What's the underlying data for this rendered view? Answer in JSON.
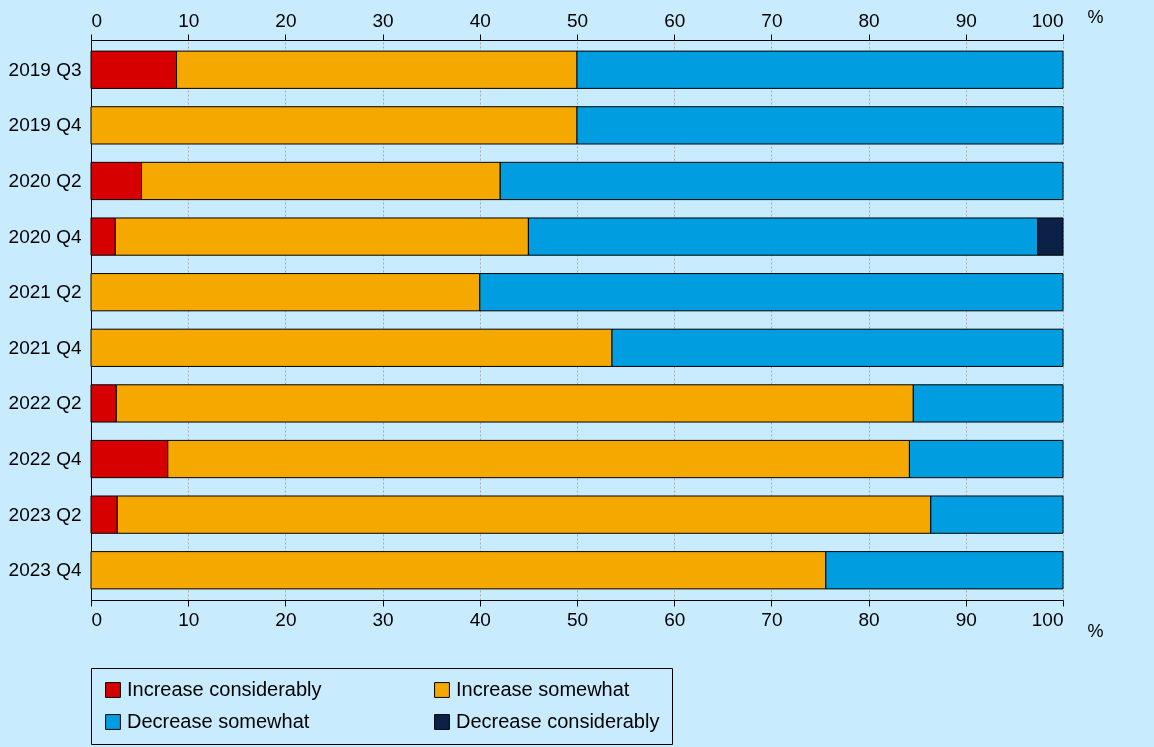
{
  "chart_data": {
    "type": "bar",
    "orientation": "horizontal",
    "stacked": true,
    "categories": [
      "2019 Q3",
      "2019 Q4",
      "2020 Q2",
      "2020 Q4",
      "2021 Q2",
      "2021 Q4",
      "2022 Q2",
      "2022 Q4",
      "2023 Q2",
      "2023 Q4"
    ],
    "series": [
      {
        "name": "Increase considerably",
        "color": "#d70000",
        "values": [
          8.8,
          null,
          5.2,
          2.5,
          null,
          null,
          2.6,
          7.9,
          2.7,
          null
        ]
      },
      {
        "name": "Increase somewhat",
        "color": "#f5a800",
        "values": [
          41.2,
          50,
          36.9,
          42.5,
          40,
          53.6,
          82.0,
          76.3,
          83.7,
          75.6
        ]
      },
      {
        "name": "Decrease somewhat",
        "color": "#009ee0",
        "values": [
          50,
          50,
          57.9,
          52.4,
          60,
          46.4,
          15.4,
          15.8,
          13.6,
          24.4
        ]
      },
      {
        "name": "Decrease considerably",
        "color": "#0c2146",
        "values": [
          null,
          null,
          null,
          2.6,
          null,
          null,
          null,
          null,
          null,
          null
        ]
      }
    ],
    "xlim": [
      0,
      100
    ],
    "xticks": [
      0,
      10,
      20,
      30,
      40,
      50,
      60,
      70,
      80,
      90,
      100
    ],
    "xlabel": "%",
    "x2lim": [
      0,
      100
    ],
    "x2ticks": [
      0,
      10,
      20,
      30,
      40,
      50,
      60,
      70,
      80,
      90,
      100
    ],
    "x2label": "%",
    "grid": "x",
    "legend": "bottom"
  }
}
